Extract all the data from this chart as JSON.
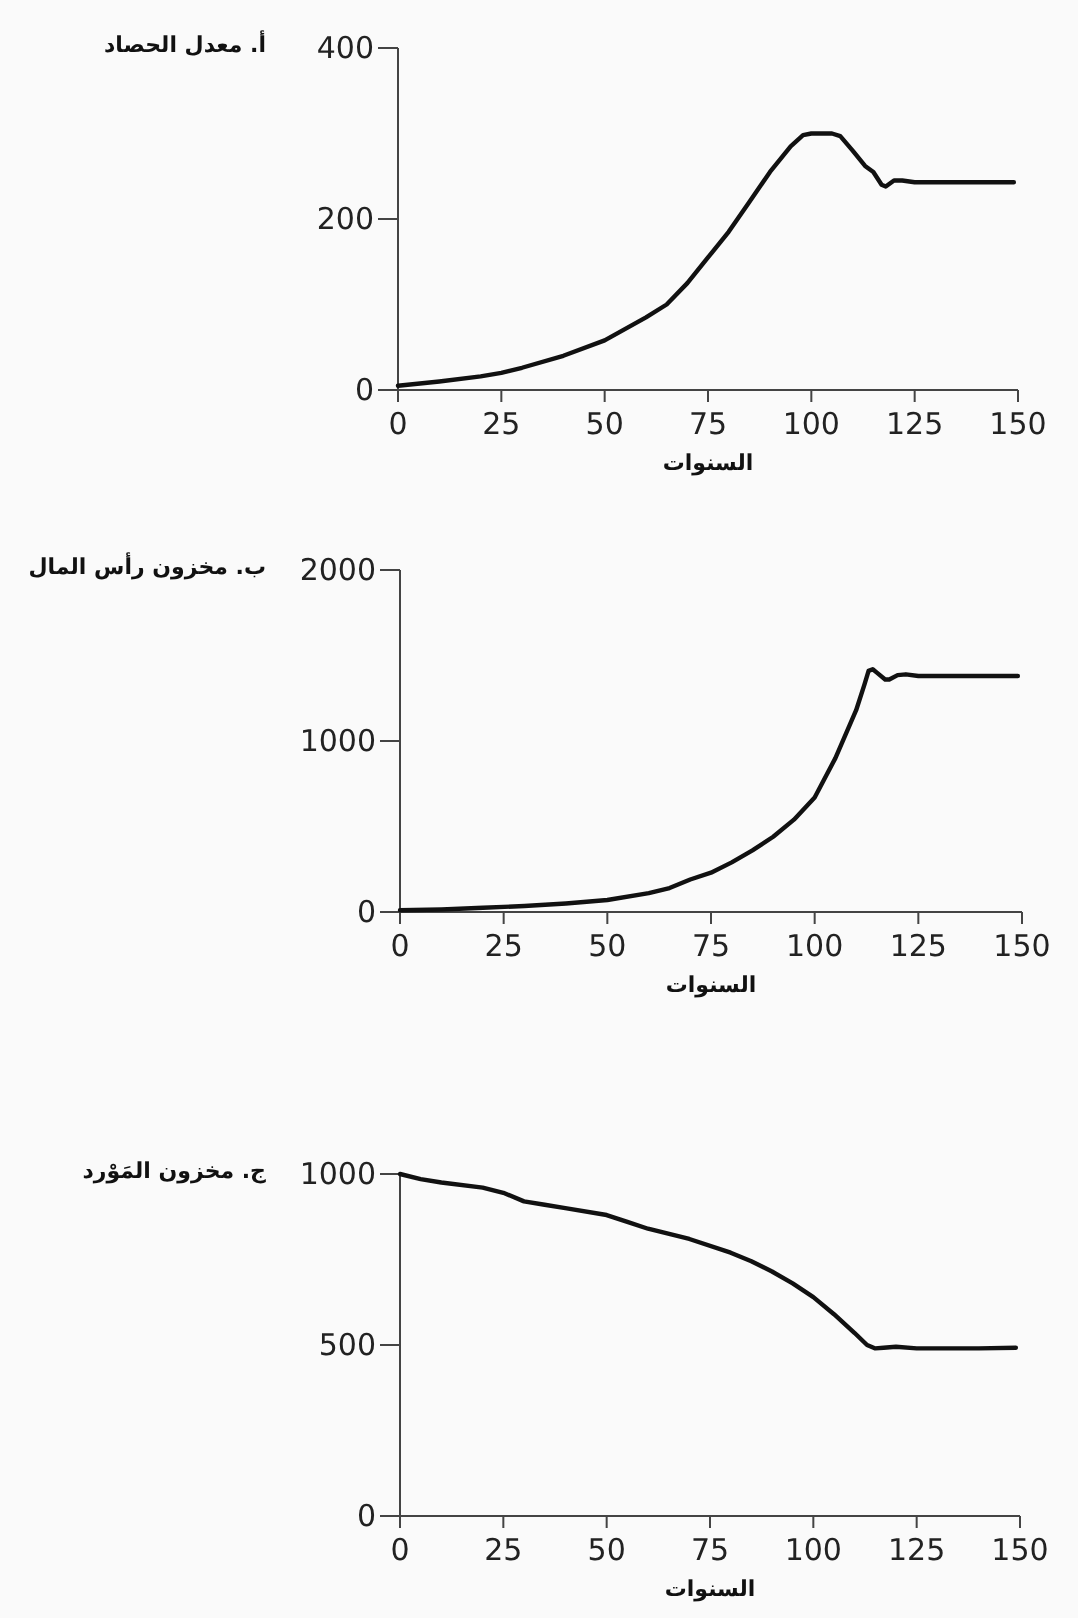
{
  "chart_data": [
    {
      "type": "line",
      "title": "أ. معدل الحصاد",
      "xlabel": "السنوات",
      "xlim": [
        0,
        150
      ],
      "xticks": [
        0,
        25,
        50,
        75,
        100,
        125,
        150
      ],
      "ylim": [
        0,
        400
      ],
      "yticks": [
        0,
        200,
        400
      ],
      "series": [
        {
          "color": "#111111",
          "x": [
            0,
            10,
            20,
            25,
            30,
            40,
            50,
            60,
            65,
            70,
            75,
            80,
            85,
            90,
            95,
            98,
            100,
            105,
            107,
            110,
            113,
            115,
            117,
            118,
            120,
            122,
            125,
            149
          ],
          "values": [
            5,
            10,
            16,
            20,
            26,
            40,
            58,
            85,
            100,
            125,
            155,
            185,
            220,
            255,
            285,
            298,
            300,
            300,
            297,
            280,
            262,
            255,
            240,
            238,
            245,
            245,
            243,
            243
          ]
        }
      ]
    },
    {
      "type": "line",
      "title": "ب. مخزون رأس المال",
      "xlabel": "السنوات",
      "xlim": [
        0,
        150
      ],
      "xticks": [
        0,
        25,
        50,
        75,
        100,
        125,
        150
      ],
      "ylim": [
        0,
        2000
      ],
      "yticks": [
        0,
        1000,
        2000
      ],
      "series": [
        {
          "color": "#111111",
          "x": [
            0,
            10,
            20,
            30,
            40,
            50,
            60,
            65,
            70,
            75,
            80,
            85,
            90,
            95,
            100,
            105,
            110,
            112,
            113,
            114,
            115,
            117,
            118,
            120,
            122,
            125,
            149
          ],
          "values": [
            10,
            15,
            25,
            35,
            50,
            70,
            110,
            140,
            190,
            230,
            290,
            360,
            440,
            540,
            670,
            900,
            1180,
            1330,
            1410,
            1420,
            1400,
            1360,
            1360,
            1385,
            1390,
            1380,
            1380
          ]
        }
      ]
    },
    {
      "type": "line",
      "title": "ج. مخزون المَوْرد",
      "xlabel": "السنوات",
      "xlim": [
        0,
        150
      ],
      "xticks": [
        0,
        25,
        50,
        75,
        100,
        125,
        150
      ],
      "ylim": [
        0,
        1000
      ],
      "yticks": [
        0,
        500,
        1000
      ],
      "series": [
        {
          "color": "#111111",
          "x": [
            0,
            5,
            10,
            20,
            25,
            30,
            35,
            40,
            50,
            55,
            60,
            70,
            80,
            85,
            90,
            95,
            100,
            105,
            110,
            113,
            115,
            117,
            120,
            125,
            140,
            149
          ],
          "values": [
            1000,
            985,
            975,
            960,
            945,
            920,
            910,
            900,
            880,
            860,
            840,
            810,
            770,
            745,
            715,
            680,
            640,
            590,
            535,
            500,
            490,
            492,
            495,
            490,
            490,
            492
          ]
        }
      ]
    }
  ]
}
